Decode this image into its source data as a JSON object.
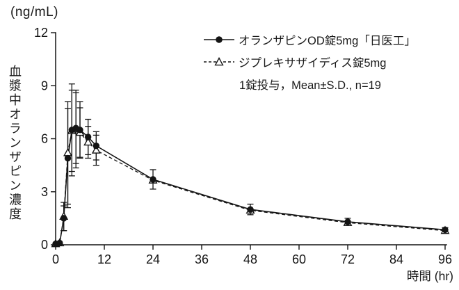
{
  "figure": {
    "background": "#ffffff",
    "ink_color": "#141414"
  },
  "chart_data": {
    "type": "line",
    "y_unit_label": "(ng/mL)",
    "y_axis_label": "血漿中オランザピン濃度",
    "x_axis_label": "時間 (hr)",
    "annotation": "1錠投与，Mean±S.D., n=19",
    "grid": false,
    "legend_position": "top-right",
    "xlim": [
      0,
      96
    ],
    "ylim": [
      0,
      12
    ],
    "x_ticks": [
      0,
      12,
      24,
      36,
      48,
      60,
      72,
      84,
      96
    ],
    "y_ticks": [
      0,
      3,
      6,
      9,
      12
    ],
    "x": [
      0,
      1,
      2,
      3,
      4,
      5,
      6,
      8,
      10,
      24,
      48,
      72,
      96
    ],
    "series": [
      {
        "name": "オランザピンOD錠5mg「日医工」",
        "marker": "filled-circle",
        "line": "solid",
        "color": "#141414",
        "values": [
          0.05,
          0.1,
          1.5,
          4.9,
          6.5,
          6.6,
          6.5,
          6.1,
          5.6,
          3.7,
          2.0,
          1.3,
          0.85
        ],
        "sd": [
          0,
          0,
          0.7,
          2.8,
          2.6,
          2.0,
          1.6,
          1.0,
          0.8,
          0.55,
          0.3,
          0.2,
          0.12
        ]
      },
      {
        "name": "ジプレキサザイディス錠5mg",
        "marker": "open-triangle",
        "line": "dashed",
        "color": "#141414",
        "values": [
          0.05,
          0.1,
          1.6,
          5.2,
          6.45,
          6.55,
          6.35,
          5.8,
          5.35,
          3.65,
          1.95,
          1.25,
          0.8
        ],
        "sd": [
          0,
          0,
          0.8,
          2.9,
          2.3,
          2.2,
          1.4,
          0.9,
          0.85,
          0,
          0,
          0,
          0
        ]
      }
    ]
  }
}
